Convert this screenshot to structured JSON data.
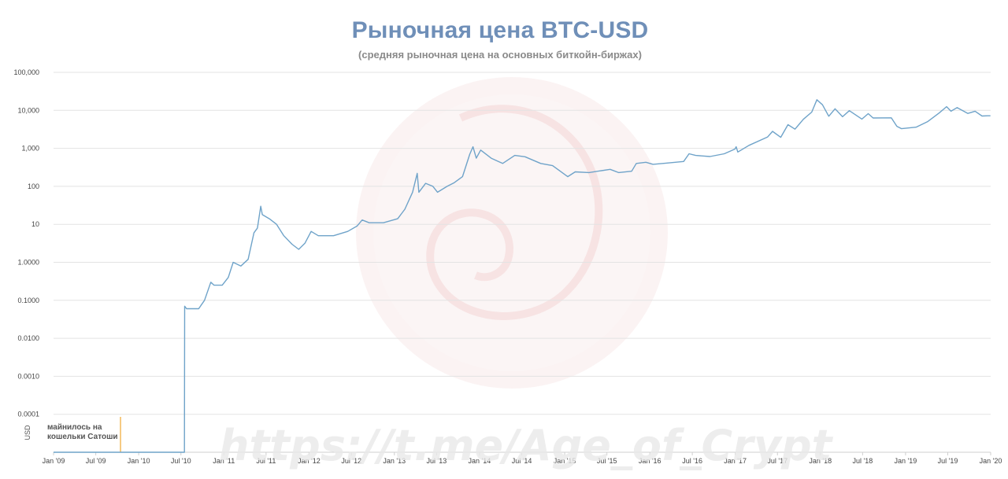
{
  "chart_data": {
    "type": "line",
    "title": "Рыночная цена BTC-USD",
    "subtitle": "(средняя рыночная цена на основных биткойн-биржах)",
    "ylabel": "USD",
    "xlabel": "",
    "y_scale": "log",
    "ylim": [
      1e-05,
      100000
    ],
    "xlim": [
      "2009-01-01",
      "2020-01-01"
    ],
    "grid": true,
    "legend": "none",
    "line_color": "#6fa3c9",
    "annotation_color": "#f0a830",
    "y_ticks": [
      {
        "value": 100000,
        "label": "100,000"
      },
      {
        "value": 10000,
        "label": "10,000"
      },
      {
        "value": 1000,
        "label": "1,000"
      },
      {
        "value": 100,
        "label": "100"
      },
      {
        "value": 10,
        "label": "10"
      },
      {
        "value": 1,
        "label": "1.0000"
      },
      {
        "value": 0.1,
        "label": "0.1000"
      },
      {
        "value": 0.01,
        "label": "0.0100"
      },
      {
        "value": 0.001,
        "label": "0.0010"
      },
      {
        "value": 0.0001,
        "label": "0.0001"
      }
    ],
    "x_ticks": [
      {
        "date": "2009-01-01",
        "label": "Jan '09"
      },
      {
        "date": "2009-07-01",
        "label": "Jul '09"
      },
      {
        "date": "2010-01-01",
        "label": "Jan '10"
      },
      {
        "date": "2010-07-01",
        "label": "Jul '10"
      },
      {
        "date": "2011-01-01",
        "label": "Jan '11"
      },
      {
        "date": "2011-07-01",
        "label": "Jul '11"
      },
      {
        "date": "2012-01-01",
        "label": "Jan '12"
      },
      {
        "date": "2012-07-01",
        "label": "Jul '12"
      },
      {
        "date": "2013-01-01",
        "label": "Jan '13"
      },
      {
        "date": "2013-07-01",
        "label": "Jul '13"
      },
      {
        "date": "2014-01-01",
        "label": "Jan '14"
      },
      {
        "date": "2014-07-01",
        "label": "Jul '14"
      },
      {
        "date": "2015-01-01",
        "label": "Jan '15"
      },
      {
        "date": "2015-07-01",
        "label": "Jul '15"
      },
      {
        "date": "2016-01-01",
        "label": "Jan '16"
      },
      {
        "date": "2016-07-01",
        "label": "Jul '16"
      },
      {
        "date": "2017-01-01",
        "label": "Jan '17"
      },
      {
        "date": "2017-07-01",
        "label": "Jul '17"
      },
      {
        "date": "2018-01-01",
        "label": "Jan '18"
      },
      {
        "date": "2018-07-01",
        "label": "Jul '18"
      },
      {
        "date": "2019-01-01",
        "label": "Jan '19"
      },
      {
        "date": "2019-07-01",
        "label": "Jul '19"
      },
      {
        "date": "2020-01-01",
        "label": "Jan '20"
      }
    ],
    "annotation": {
      "date": "2009-10-15",
      "lines": [
        "майнилось на",
        "кошельки Сатоши"
      ]
    },
    "series": [
      {
        "points": [
          [
            "2009-01-01",
            1e-05
          ],
          [
            "2010-07-16",
            1e-05
          ],
          [
            "2010-07-17",
            0.07
          ],
          [
            "2010-07-25",
            0.06
          ],
          [
            "2010-09-15",
            0.06
          ],
          [
            "2010-10-10",
            0.1
          ],
          [
            "2010-11-06",
            0.3
          ],
          [
            "2010-11-20",
            0.25
          ],
          [
            "2010-12-25",
            0.25
          ],
          [
            "2011-01-20",
            0.4
          ],
          [
            "2011-02-10",
            1.0
          ],
          [
            "2011-03-15",
            0.8
          ],
          [
            "2011-04-15",
            1.2
          ],
          [
            "2011-05-10",
            6
          ],
          [
            "2011-05-25",
            8
          ],
          [
            "2011-06-08",
            30
          ],
          [
            "2011-06-15",
            18
          ],
          [
            "2011-07-15",
            14
          ],
          [
            "2011-08-15",
            10
          ],
          [
            "2011-09-15",
            5
          ],
          [
            "2011-10-20",
            3
          ],
          [
            "2011-11-18",
            2.2
          ],
          [
            "2011-12-15",
            3.2
          ],
          [
            "2012-01-10",
            6.5
          ],
          [
            "2012-02-10",
            5.0
          ],
          [
            "2012-04-15",
            5.0
          ],
          [
            "2012-06-15",
            6.5
          ],
          [
            "2012-07-25",
            9
          ],
          [
            "2012-08-16",
            13
          ],
          [
            "2012-09-15",
            11
          ],
          [
            "2012-11-15",
            11
          ],
          [
            "2013-01-15",
            14
          ],
          [
            "2013-02-15",
            25
          ],
          [
            "2013-03-20",
            70
          ],
          [
            "2013-04-09",
            220
          ],
          [
            "2013-04-16",
            70
          ],
          [
            "2013-05-15",
            120
          ],
          [
            "2013-06-15",
            100
          ],
          [
            "2013-07-05",
            70
          ],
          [
            "2013-08-15",
            100
          ],
          [
            "2013-09-15",
            125
          ],
          [
            "2013-10-20",
            180
          ],
          [
            "2013-11-20",
            700
          ],
          [
            "2013-12-04",
            1100
          ],
          [
            "2013-12-18",
            550
          ],
          [
            "2014-01-06",
            900
          ],
          [
            "2014-02-20",
            550
          ],
          [
            "2014-04-10",
            400
          ],
          [
            "2014-06-01",
            650
          ],
          [
            "2014-07-15",
            600
          ],
          [
            "2014-09-20",
            400
          ],
          [
            "2014-11-10",
            350
          ],
          [
            "2015-01-14",
            180
          ],
          [
            "2015-02-15",
            240
          ],
          [
            "2015-04-15",
            230
          ],
          [
            "2015-07-15",
            280
          ],
          [
            "2015-08-20",
            230
          ],
          [
            "2015-10-15",
            250
          ],
          [
            "2015-11-04",
            400
          ],
          [
            "2015-12-15",
            430
          ],
          [
            "2016-01-15",
            380
          ],
          [
            "2016-03-15",
            410
          ],
          [
            "2016-05-25",
            450
          ],
          [
            "2016-06-17",
            720
          ],
          [
            "2016-07-15",
            650
          ],
          [
            "2016-09-15",
            610
          ],
          [
            "2016-11-15",
            720
          ],
          [
            "2016-12-31",
            960
          ],
          [
            "2017-01-05",
            1100
          ],
          [
            "2017-01-12",
            800
          ],
          [
            "2017-03-01",
            1200
          ],
          [
            "2017-05-20",
            2000
          ],
          [
            "2017-06-10",
            2800
          ],
          [
            "2017-07-15",
            1950
          ],
          [
            "2017-08-15",
            4200
          ],
          [
            "2017-09-14",
            3200
          ],
          [
            "2017-10-20",
            5800
          ],
          [
            "2017-11-25",
            9000
          ],
          [
            "2017-12-17",
            19000
          ],
          [
            "2018-01-10",
            14000
          ],
          [
            "2018-02-06",
            7000
          ],
          [
            "2018-03-05",
            11000
          ],
          [
            "2018-04-06",
            6800
          ],
          [
            "2018-05-05",
            9800
          ],
          [
            "2018-06-28",
            5900
          ],
          [
            "2018-07-25",
            8200
          ],
          [
            "2018-08-15",
            6300
          ],
          [
            "2018-11-01",
            6350
          ],
          [
            "2018-11-25",
            3800
          ],
          [
            "2018-12-15",
            3300
          ],
          [
            "2019-02-15",
            3600
          ],
          [
            "2019-04-05",
            5000
          ],
          [
            "2019-05-25",
            8500
          ],
          [
            "2019-06-26",
            12500
          ],
          [
            "2019-07-15",
            9500
          ],
          [
            "2019-08-10",
            11800
          ],
          [
            "2019-09-25",
            8300
          ],
          [
            "2019-10-26",
            9500
          ],
          [
            "2019-11-25",
            7100
          ],
          [
            "2019-12-20",
            7200
          ],
          [
            "2019-12-31",
            7200
          ]
        ]
      }
    ]
  }
}
